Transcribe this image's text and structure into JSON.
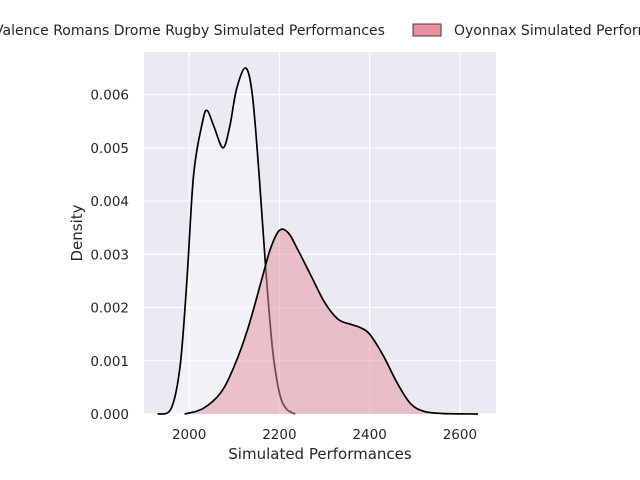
{
  "chart_data": {
    "type": "area",
    "title": "",
    "xlabel": "Simulated Performances",
    "ylabel": "Density",
    "xlim": [
      1900,
      2680
    ],
    "ylim": [
      0,
      0.0068
    ],
    "x_ticks": [
      2000,
      2200,
      2400,
      2600
    ],
    "y_ticks": [
      0.0,
      0.001,
      0.002,
      0.003,
      0.004,
      0.005,
      0.006
    ],
    "x_tick_labels": [
      "2000",
      "2200",
      "2400",
      "2600"
    ],
    "y_tick_labels": [
      "0.000",
      "0.001",
      "0.002",
      "0.003",
      "0.004",
      "0.005",
      "0.006"
    ],
    "grid": true,
    "legend_position": "top (above plot)",
    "series": [
      {
        "name": "Valence Romans Drome Rugby Simulated Performances",
        "color": "#FFFFFF",
        "fill_opacity": 0.35,
        "points": [
          [
            1930,
            0.0
          ],
          [
            1960,
            0.0001
          ],
          [
            1980,
            0.0009
          ],
          [
            1995,
            0.0025
          ],
          [
            2010,
            0.0045
          ],
          [
            2030,
            0.0055
          ],
          [
            2040,
            0.0057
          ],
          [
            2055,
            0.0054
          ],
          [
            2075,
            0.005
          ],
          [
            2090,
            0.0054
          ],
          [
            2105,
            0.0061
          ],
          [
            2125,
            0.0065
          ],
          [
            2140,
            0.006
          ],
          [
            2155,
            0.0045
          ],
          [
            2170,
            0.0027
          ],
          [
            2185,
            0.0012
          ],
          [
            2200,
            0.0004
          ],
          [
            2215,
            0.0001
          ],
          [
            2235,
            0.0
          ]
        ]
      },
      {
        "name": "Oyonnax Simulated Performances",
        "color": "#e8909c",
        "fill_opacity": 0.5,
        "points": [
          [
            1990,
            0.0
          ],
          [
            2030,
            0.0001
          ],
          [
            2070,
            0.0004
          ],
          [
            2100,
            0.0009
          ],
          [
            2130,
            0.0016
          ],
          [
            2160,
            0.0025
          ],
          [
            2180,
            0.0031
          ],
          [
            2200,
            0.00345
          ],
          [
            2220,
            0.0034
          ],
          [
            2240,
            0.0031
          ],
          [
            2270,
            0.0026
          ],
          [
            2300,
            0.0021
          ],
          [
            2330,
            0.00178
          ],
          [
            2360,
            0.00168
          ],
          [
            2380,
            0.00162
          ],
          [
            2400,
            0.0015
          ],
          [
            2430,
            0.0011
          ],
          [
            2460,
            0.0006
          ],
          [
            2490,
            0.0002
          ],
          [
            2520,
            5e-05
          ],
          [
            2560,
            1e-05
          ],
          [
            2640,
            0.0
          ]
        ]
      }
    ]
  }
}
